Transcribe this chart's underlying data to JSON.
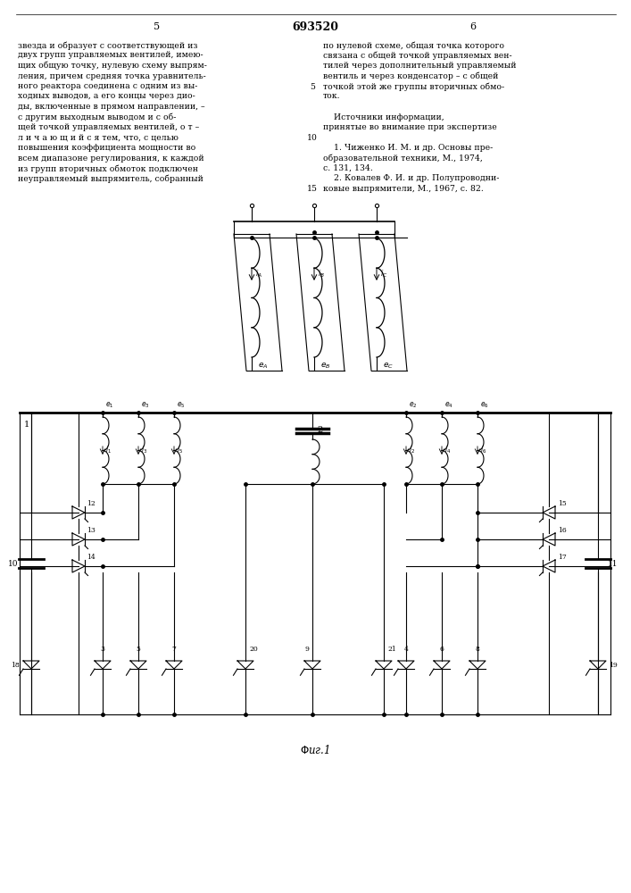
{
  "background_color": "#ffffff",
  "page_number_center": "693520",
  "page_number_left": "5",
  "page_number_right": "6",
  "left_column_text": [
    "звезда и образует с соответствующей из",
    "двух групп управляемых вентилей, имею-",
    "щих общую точку, нулевую схему выпрям-",
    "ления, причем средняя точка уравнитель-",
    "ного реактора соединена с одним из вы-",
    "ходных выводов, а его концы через дио-",
    "ды, включенные в прямом направлении, –",
    "с другим выходным выводом и с об-",
    "щей точкой управляемых вентилей, о т –",
    "л и ч а ю щ и й с я тем, что, с целью",
    "повышения коэффициента мощности во",
    "всем диапазоне регулирования, к каждой",
    "из групп вторичных обмоток подключен",
    "неуправляемый выпрямитель, собранный"
  ],
  "right_column_text": [
    "по нулевой схеме, общая точка которого",
    "связана с общей точкой управляемых вен-",
    "тилей через дополнительный управляемый",
    "вентиль и через конденсатор – с общей",
    "точкой этой же группы вторичных обмо-",
    "ток.",
    "",
    "    Источники информации,",
    "принятые во внимание при экспертизе",
    "",
    "    1. Чиженко И. М. и др. Основы пре-",
    "образовательной техники, М., 1974,",
    "с. 131, 134.",
    "    2. Ковалев Ф. И. и др. Полупроводни-",
    "ковые выпрямители, М., 1967, с. 82."
  ]
}
